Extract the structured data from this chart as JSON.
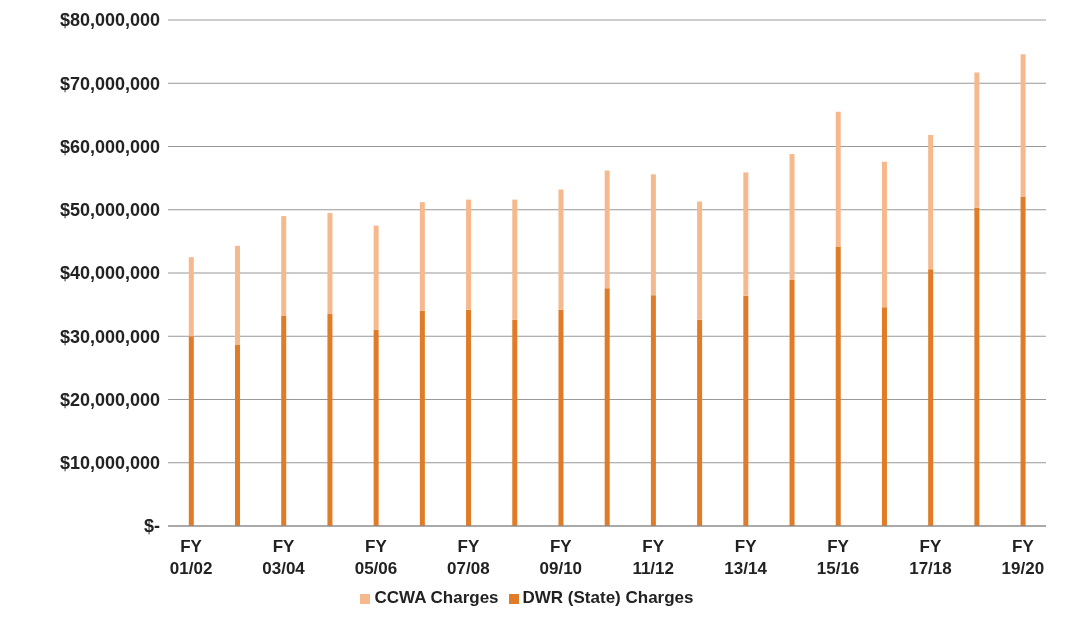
{
  "chart_data": {
    "type": "bar",
    "stacked": true,
    "categories": [
      "FY\n01/02",
      null,
      "FY\n03/04",
      null,
      "FY\n05/06",
      null,
      "FY\n07/08",
      null,
      "FY\n09/10",
      null,
      "FY\n11/12",
      null,
      "FY\n13/14",
      null,
      "FY\n15/16",
      null,
      "FY\n17/18",
      null,
      "FY\n19/20"
    ],
    "series": [
      {
        "name": "DWR (State) Charges",
        "color": "#e07b28",
        "values": [
          30000000,
          28700000,
          33200000,
          33500000,
          31000000,
          34000000,
          34200000,
          32600000,
          34200000,
          37600000,
          36500000,
          32600000,
          36400000,
          38900000,
          44200000,
          34600000,
          40600000,
          50300000,
          52000000
        ]
      },
      {
        "name": "CCWA Charges",
        "color": "#f5b98d",
        "values": [
          12500000,
          15600000,
          15800000,
          16000000,
          16500000,
          17200000,
          17400000,
          19000000,
          19000000,
          18600000,
          19100000,
          18700000,
          19500000,
          19900000,
          21300000,
          23000000,
          21200000,
          21400000,
          22600000
        ]
      }
    ],
    "ylim": [
      0,
      80000000
    ],
    "yticks": [
      {
        "value": 0,
        "label": "$-"
      },
      {
        "value": 10000000,
        "label": "$10,000,000"
      },
      {
        "value": 20000000,
        "label": "$20,000,000"
      },
      {
        "value": 30000000,
        "label": "$30,000,000"
      },
      {
        "value": 40000000,
        "label": "$40,000,000"
      },
      {
        "value": 50000000,
        "label": "$50,000,000"
      },
      {
        "value": 60000000,
        "label": "$60,000,000"
      },
      {
        "value": 70000000,
        "label": "$70,000,000"
      },
      {
        "value": 80000000,
        "label": "$80,000,000"
      }
    ],
    "grid": "y",
    "legend": "bottom"
  }
}
